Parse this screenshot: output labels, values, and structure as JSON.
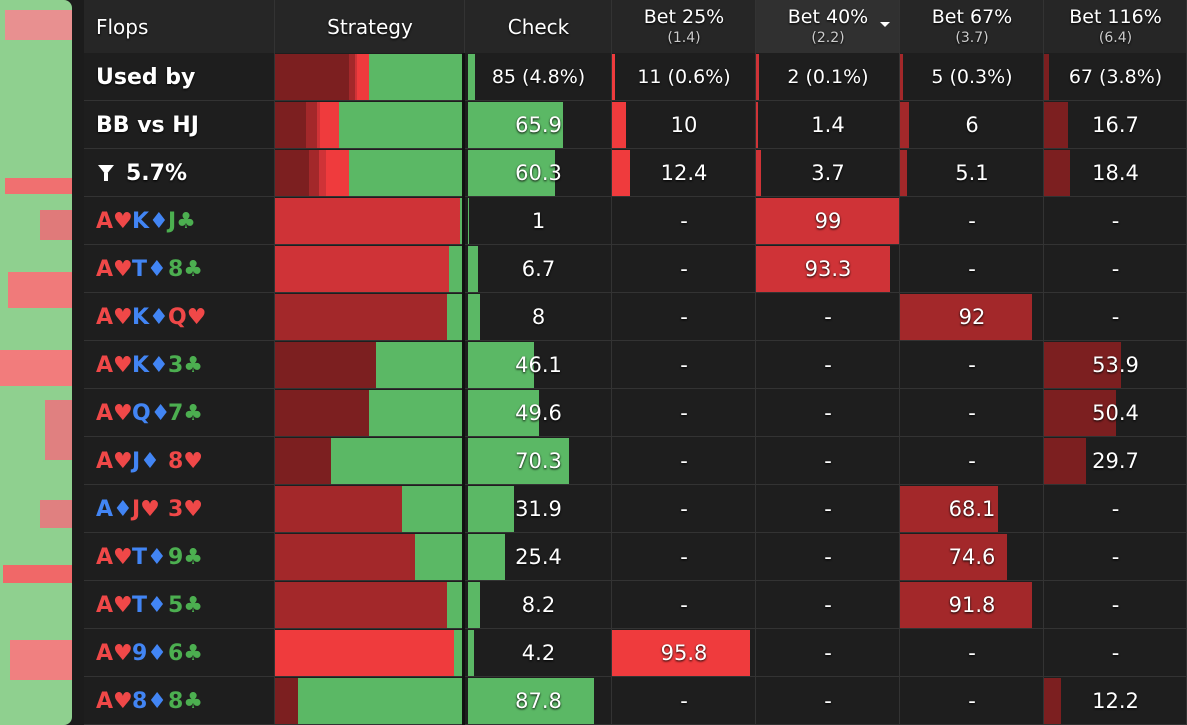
{
  "header": {
    "columns": [
      {
        "title": "Flops"
      },
      {
        "title": "Strategy"
      },
      {
        "title": "Check",
        "color": "#5bb865"
      },
      {
        "title": "Bet 25%",
        "sub": "(1.4)",
        "color": "#ef3b3d"
      },
      {
        "title": "Bet 40%",
        "sub": "(2.2)",
        "color": "#cf3337"
      },
      {
        "title": "Bet 67%",
        "sub": "(3.7)",
        "color": "#a3282a"
      },
      {
        "title": "Bet 116%",
        "sub": "(6.4)",
        "color": "#7c1f20"
      }
    ]
  },
  "summary": [
    {
      "label": "Used by",
      "values": [
        {
          "value": 4.8,
          "label": "85 (4.8%)"
        },
        {
          "value": 0.6,
          "label": "11 (0.6%)"
        },
        {
          "value": 0.1,
          "label": "2 (0.1%)"
        },
        {
          "value": 0.3,
          "label": "5 (0.3%)"
        },
        {
          "value": 3.8,
          "label": "67 (3.8%)"
        }
      ]
    },
    {
      "label": "BB vs HJ",
      "values": [
        65.9,
        10,
        1.4,
        6,
        16.7
      ]
    },
    {
      "label": "5.7%",
      "values": [
        60.3,
        12.4,
        3.7,
        5.1,
        18.4
      ]
    }
  ],
  "flops": [
    {
      "cards": [
        {
          "text": "A♥",
          "color": "#f04848"
        },
        {
          "text": "K♦",
          "color": "#4285f4"
        },
        {
          "text": "J♣",
          "color": "#4caf50"
        }
      ],
      "values": [
        1,
        "-",
        99,
        "-",
        "-"
      ]
    },
    {
      "cards": [
        {
          "text": "A♥",
          "color": "#f04848"
        },
        {
          "text": "T♦",
          "color": "#4285f4"
        },
        {
          "text": "8♣",
          "color": "#4caf50"
        }
      ],
      "values": [
        6.7,
        "-",
        93.3,
        "-",
        "-"
      ]
    },
    {
      "cards": [
        {
          "text": "A♥",
          "color": "#f04848"
        },
        {
          "text": "K♦",
          "color": "#4285f4"
        },
        {
          "text": "Q♥",
          "color": "#f04848"
        }
      ],
      "values": [
        8,
        "-",
        "-",
        92,
        "-"
      ]
    },
    {
      "cards": [
        {
          "text": "A♥",
          "color": "#f04848"
        },
        {
          "text": "K♦",
          "color": "#4285f4"
        },
        {
          "text": "3♣",
          "color": "#4caf50"
        }
      ],
      "values": [
        46.1,
        "-",
        "-",
        "-",
        53.9
      ]
    },
    {
      "cards": [
        {
          "text": "A♥",
          "color": "#f04848"
        },
        {
          "text": "Q♦",
          "color": "#4285f4"
        },
        {
          "text": "7♣",
          "color": "#4caf50"
        }
      ],
      "values": [
        49.6,
        "-",
        "-",
        "-",
        50.4
      ]
    },
    {
      "cards": [
        {
          "text": "A♥",
          "color": "#f04848"
        },
        {
          "text": "J♦",
          "color": "#4285f4"
        },
        {
          "text": "8♥",
          "color": "#f04848"
        }
      ],
      "values": [
        70.3,
        "-",
        "-",
        "-",
        29.7
      ]
    },
    {
      "cards": [
        {
          "text": "A♦",
          "color": "#4285f4"
        },
        {
          "text": "J♥",
          "color": "#f04848"
        },
        {
          "text": "3♥",
          "color": "#f04848"
        }
      ],
      "values": [
        31.9,
        "-",
        "-",
        68.1,
        "-"
      ]
    },
    {
      "cards": [
        {
          "text": "A♥",
          "color": "#f04848"
        },
        {
          "text": "T♦",
          "color": "#4285f4"
        },
        {
          "text": "9♣",
          "color": "#4caf50"
        }
      ],
      "values": [
        25.4,
        "-",
        "-",
        74.6,
        "-"
      ]
    },
    {
      "cards": [
        {
          "text": "A♥",
          "color": "#f04848"
        },
        {
          "text": "T♦",
          "color": "#4285f4"
        },
        {
          "text": "5♣",
          "color": "#4caf50"
        }
      ],
      "values": [
        8.2,
        "-",
        "-",
        91.8,
        "-"
      ]
    },
    {
      "cards": [
        {
          "text": "A♥",
          "color": "#f04848"
        },
        {
          "text": "9♦",
          "color": "#4285f4"
        },
        {
          "text": "6♣",
          "color": "#4caf50"
        }
      ],
      "values": [
        4.2,
        95.8,
        "-",
        "-",
        "-"
      ]
    },
    {
      "cards": [
        {
          "text": "A♥",
          "color": "#f04848"
        },
        {
          "text": "8♦",
          "color": "#4285f4"
        },
        {
          "text": "8♣",
          "color": "#4caf50"
        }
      ],
      "values": [
        87.8,
        "-",
        "-",
        "-",
        12.2
      ]
    }
  ]
}
